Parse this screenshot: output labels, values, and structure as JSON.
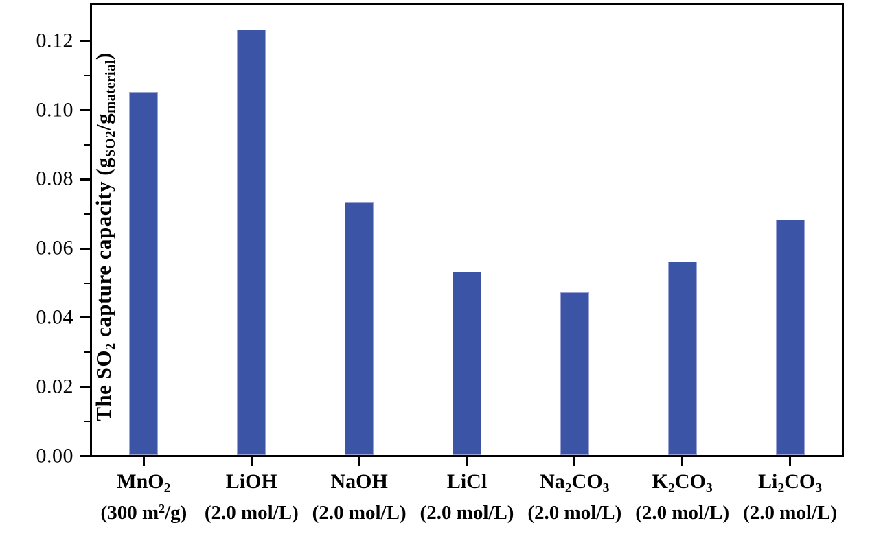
{
  "figure": {
    "background": "#ffffff",
    "axis_color": "#000000",
    "text_color": "#000000"
  },
  "chart_data": {
    "type": "bar",
    "title": "",
    "xlabel": "",
    "ylabel": "The SO2 capture capacity (gSO2/gmaterial)",
    "ylabel_rich": [
      {
        "t": "The SO"
      },
      {
        "t": "2",
        "s": "sub"
      },
      {
        "t": " capture capacity ("
      },
      {
        "t": "g"
      },
      {
        "t": "SO2",
        "s": "sub"
      },
      {
        "t": "/g"
      },
      {
        "t": "material",
        "s": "sub"
      },
      {
        "t": ")"
      }
    ],
    "categories": [
      "MnO2 (300 m2/g)",
      "LiOH (2.0 mol/L)",
      "NaOH (2.0 mol/L)",
      "LiCl (2.0 mol/L)",
      "Na2CO3 (2.0 mol/L)",
      "K2CO3 (2.0 mol/L)",
      "Li2CO3 (2.0 mol/L)"
    ],
    "values": [
      0.105,
      0.123,
      0.073,
      0.053,
      0.047,
      0.056,
      0.068
    ],
    "x_labels_rich": [
      {
        "id": "MnO2",
        "formula": [
          {
            "t": "MnO"
          },
          {
            "t": "2",
            "s": "sub"
          }
        ],
        "detail": [
          {
            "t": "(300 m"
          },
          {
            "t": "2",
            "s": "sup"
          },
          {
            "t": "/g)"
          }
        ]
      },
      {
        "id": "LiOH",
        "formula": [
          {
            "t": "LiOH"
          }
        ],
        "detail": [
          {
            "t": "(2.0 mol/L)"
          }
        ]
      },
      {
        "id": "NaOH",
        "formula": [
          {
            "t": "NaOH"
          }
        ],
        "detail": [
          {
            "t": "(2.0 mol/L)"
          }
        ]
      },
      {
        "id": "LiCl",
        "formula": [
          {
            "t": "LiCl"
          }
        ],
        "detail": [
          {
            "t": "(2.0 mol/L)"
          }
        ]
      },
      {
        "id": "Na2CO3",
        "formula": [
          {
            "t": "Na"
          },
          {
            "t": "2",
            "s": "sub"
          },
          {
            "t": "CO"
          },
          {
            "t": "3",
            "s": "sub"
          }
        ],
        "detail": [
          {
            "t": "(2.0 mol/L)"
          }
        ]
      },
      {
        "id": "K2CO3",
        "formula": [
          {
            "t": "K"
          },
          {
            "t": "2",
            "s": "sub"
          },
          {
            "t": "CO"
          },
          {
            "t": "3",
            "s": "sub"
          }
        ],
        "detail": [
          {
            "t": "(2.0 mol/L)"
          }
        ]
      },
      {
        "id": "Li2CO3",
        "formula": [
          {
            "t": "Li"
          },
          {
            "t": "2",
            "s": "sub"
          },
          {
            "t": "CO"
          },
          {
            "t": "3",
            "s": "sub"
          }
        ],
        "detail": [
          {
            "t": "(2.0 mol/L)"
          }
        ]
      }
    ],
    "ylim": [
      0,
      0.13
    ],
    "yticks": [
      {
        "value": 0.0,
        "label": "0.00"
      },
      {
        "value": 0.02,
        "label": "0.02"
      },
      {
        "value": 0.04,
        "label": "0.04"
      },
      {
        "value": 0.06,
        "label": "0.06"
      },
      {
        "value": 0.08,
        "label": "0.08"
      },
      {
        "value": 0.1,
        "label": "0.10"
      },
      {
        "value": 0.12,
        "label": "0.12"
      }
    ],
    "yticks_minor": [
      0.01,
      0.03,
      0.05,
      0.07,
      0.09,
      0.11
    ],
    "bar_color": "#3b54a5",
    "bar_edge_color": "#9aa2d4",
    "grid": false,
    "legend": null
  }
}
